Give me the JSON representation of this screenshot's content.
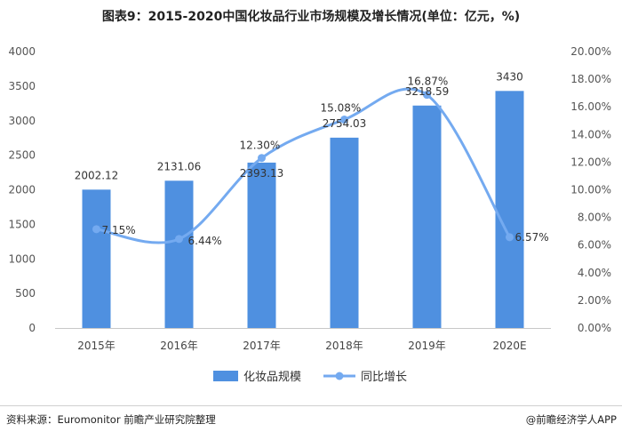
{
  "chart_data": {
    "type": "bar",
    "title": "图表9：2015-2020中国化妆品行业市场规模及增长情况(单位：亿元，%)",
    "categories": [
      "2015年",
      "2016年",
      "2017年",
      "2018年",
      "2019年",
      "2020E"
    ],
    "series": [
      {
        "name": "化妆品规模",
        "type": "bar",
        "axis": "left",
        "color": "#4f90e0",
        "values": [
          2002.12,
          2131.06,
          2393.13,
          2754.03,
          3218.59,
          3430
        ],
        "labels": [
          "2002.12",
          "2131.06",
          "2393.13",
          "2754.03",
          "3218.59",
          "3430"
        ]
      },
      {
        "name": "同比增长",
        "type": "line",
        "axis": "right",
        "color": "#74aaf0",
        "values": [
          7.15,
          6.44,
          12.3,
          15.08,
          16.87,
          6.57
        ],
        "labels": [
          "7.15%",
          "6.44%",
          "12.30%",
          "15.08%",
          "16.87%",
          "6.57%"
        ]
      }
    ],
    "y_left": {
      "min": 0,
      "max": 4000,
      "ticks": [
        "0",
        "500",
        "1000",
        "1500",
        "2000",
        "2500",
        "3000",
        "3500",
        "4000"
      ]
    },
    "y_right": {
      "min": 0,
      "max": 20,
      "ticks": [
        "0.00%",
        "2.00%",
        "4.00%",
        "6.00%",
        "8.00%",
        "10.00%",
        "12.00%",
        "14.00%",
        "16.00%",
        "18.00%",
        "20.00%"
      ]
    },
    "grid": false,
    "legend_position": "bottom-center"
  },
  "footer": {
    "source": "资料来源：Euromonitor 前瞻产业研究院整理",
    "brand": "@前瞻经济学人APP"
  }
}
